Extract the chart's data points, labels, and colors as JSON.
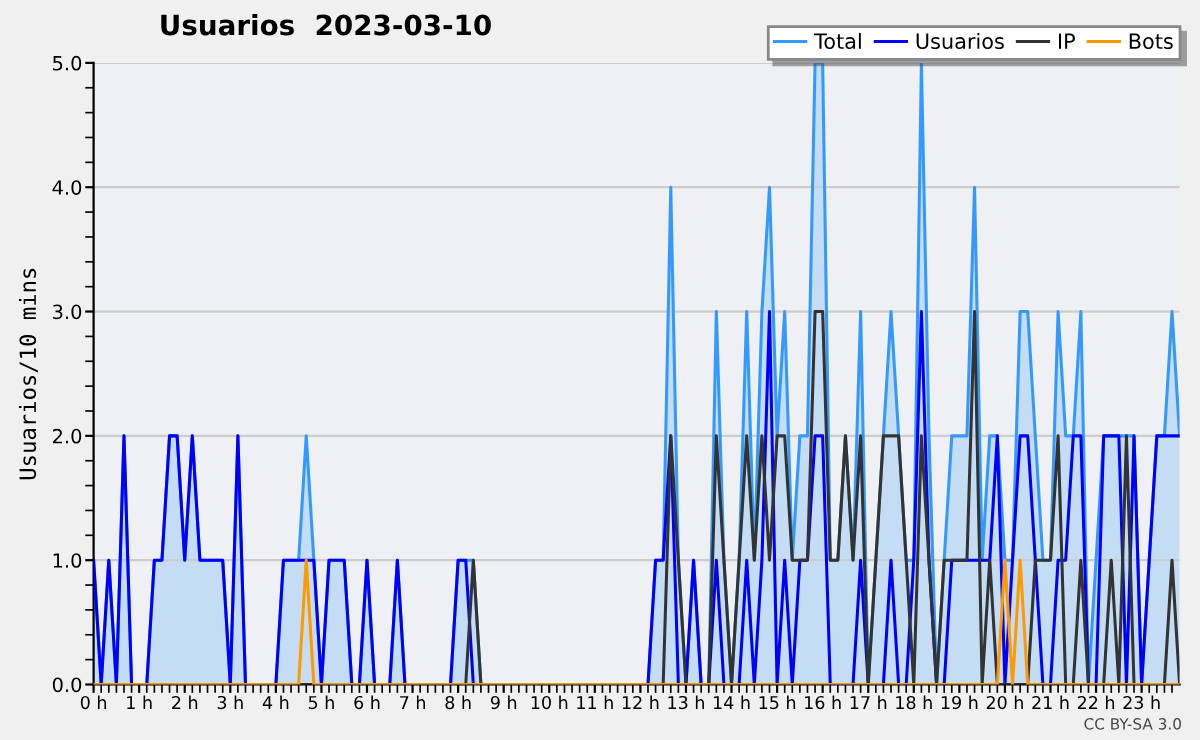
{
  "chart_data": {
    "type": "line",
    "title": "Usuarios  2023-03-10",
    "ylabel": "Usuarios/10 mins",
    "annotations": [
      "CC BY-SA 3.0"
    ],
    "x": [
      0,
      0.1667,
      0.3333,
      0.5,
      0.6667,
      0.8333,
      1,
      1.1667,
      1.3333,
      1.5,
      1.6667,
      1.8333,
      2,
      2.1667,
      2.3333,
      2.5,
      2.6667,
      2.8333,
      3,
      3.1667,
      3.3333,
      3.5,
      3.6667,
      3.8333,
      4,
      4.1667,
      4.3333,
      4.5,
      4.6667,
      4.8333,
      5,
      5.1667,
      5.3333,
      5.5,
      5.6667,
      5.8333,
      6,
      6.1667,
      6.3333,
      6.5,
      6.6667,
      6.8333,
      7,
      7.1667,
      7.3333,
      7.5,
      7.6667,
      7.8333,
      8,
      8.1667,
      8.3333,
      8.5,
      8.6667,
      8.8333,
      9,
      9.1667,
      9.3333,
      9.5,
      9.6667,
      9.8333,
      10,
      10.1667,
      10.3333,
      10.5,
      10.6667,
      10.8333,
      11,
      11.1667,
      11.3333,
      11.5,
      11.6667,
      11.8333,
      12,
      12.1667,
      12.3333,
      12.5,
      12.6667,
      12.8333,
      13,
      13.1667,
      13.3333,
      13.5,
      13.6667,
      13.8333,
      14,
      14.1667,
      14.3333,
      14.5,
      14.6667,
      14.8333,
      15,
      15.1667,
      15.3333,
      15.5,
      15.6667,
      15.8333,
      16,
      16.1667,
      16.3333,
      16.5,
      16.6667,
      16.8333,
      17,
      17.1667,
      17.3333,
      17.5,
      17.6667,
      17.8333,
      18,
      18.1667,
      18.3333,
      18.5,
      18.6667,
      18.8333,
      19,
      19.1667,
      19.3333,
      19.5,
      19.6667,
      19.8333,
      20,
      20.1667,
      20.3333,
      20.5,
      20.6667,
      20.8333,
      21,
      21.1667,
      21.3333,
      21.5,
      21.6667,
      21.8333,
      22,
      22.1667,
      22.3333,
      22.5,
      22.6667,
      22.8333,
      23,
      23.1667,
      23.3333,
      23.5,
      23.6667,
      23.8333
    ],
    "series": [
      {
        "name": "Total",
        "type": "area",
        "color": "#3399ff",
        "values": [
          1,
          0,
          1,
          0,
          2,
          0,
          0,
          0,
          1,
          1,
          2,
          2,
          1,
          2,
          1,
          1,
          1,
          1,
          0,
          2,
          0,
          0,
          0,
          0,
          0,
          1,
          1,
          1,
          2,
          1,
          0,
          1,
          1,
          1,
          0,
          0,
          1,
          0,
          0,
          0,
          1,
          0,
          0,
          0,
          0,
          0,
          0,
          0,
          1,
          1,
          1,
          0,
          0,
          0,
          0,
          0,
          0,
          0,
          0,
          0,
          0,
          0,
          0,
          0,
          0,
          0,
          0,
          0,
          0,
          0,
          0,
          0,
          0,
          0,
          1,
          1,
          4,
          1,
          0,
          1,
          0,
          0,
          3,
          1,
          0,
          1,
          3,
          1,
          3,
          4,
          2,
          3,
          1,
          2,
          2,
          5,
          5,
          1,
          1,
          2,
          1,
          3,
          0,
          1,
          2,
          3,
          2,
          1,
          1,
          5,
          2,
          0,
          1,
          2,
          2,
          2,
          4,
          1,
          2,
          2,
          1,
          1,
          3,
          3,
          2,
          1,
          1,
          3,
          2,
          2,
          3,
          0,
          1,
          2,
          2,
          2,
          2,
          2,
          0,
          1,
          2,
          2,
          3,
          2
        ]
      },
      {
        "name": "Usuarios",
        "color": "#0000ff",
        "values": [
          1,
          0,
          1,
          0,
          2,
          0,
          0,
          0,
          1,
          1,
          2,
          2,
          1,
          2,
          1,
          1,
          1,
          1,
          0,
          2,
          0,
          0,
          0,
          0,
          0,
          1,
          1,
          1,
          1,
          1,
          0,
          1,
          1,
          1,
          0,
          0,
          1,
          0,
          0,
          0,
          1,
          0,
          0,
          0,
          0,
          0,
          0,
          0,
          1,
          1,
          0,
          0,
          0,
          0,
          0,
          0,
          0,
          0,
          0,
          0,
          0,
          0,
          0,
          0,
          0,
          0,
          0,
          0,
          0,
          0,
          0,
          0,
          0,
          0,
          1,
          1,
          2,
          0,
          0,
          1,
          0,
          0,
          1,
          0,
          0,
          0,
          1,
          0,
          1,
          3,
          0,
          1,
          0,
          1,
          1,
          2,
          2,
          0,
          0,
          0,
          0,
          1,
          0,
          0,
          0,
          1,
          0,
          0,
          1,
          3,
          1,
          0,
          0,
          1,
          1,
          1,
          1,
          1,
          1,
          2,
          0,
          1,
          2,
          2,
          1,
          0,
          0,
          1,
          1,
          2,
          2,
          0,
          0,
          2,
          2,
          2,
          0,
          2,
          0,
          1,
          2,
          2,
          2,
          2
        ]
      },
      {
        "name": "IP",
        "color": "#333333",
        "values": [
          0,
          0,
          0,
          0,
          0,
          0,
          0,
          0,
          0,
          0,
          0,
          0,
          0,
          0,
          0,
          0,
          0,
          0,
          0,
          0,
          0,
          0,
          0,
          0,
          0,
          0,
          0,
          0,
          0,
          0,
          0,
          0,
          0,
          0,
          0,
          0,
          0,
          0,
          0,
          0,
          0,
          0,
          0,
          0,
          0,
          0,
          0,
          0,
          0,
          0,
          1,
          0,
          0,
          0,
          0,
          0,
          0,
          0,
          0,
          0,
          0,
          0,
          0,
          0,
          0,
          0,
          0,
          0,
          0,
          0,
          0,
          0,
          0,
          0,
          0,
          0,
          2,
          1,
          0,
          0,
          0,
          0,
          2,
          1,
          0,
          1,
          2,
          1,
          2,
          1,
          2,
          2,
          1,
          1,
          1,
          3,
          3,
          1,
          1,
          2,
          1,
          2,
          0,
          1,
          2,
          2,
          2,
          1,
          0,
          2,
          1,
          0,
          1,
          1,
          1,
          1,
          3,
          0,
          1,
          0,
          0,
          0,
          0,
          0,
          1,
          1,
          1,
          2,
          0,
          0,
          1,
          0,
          0,
          0,
          1,
          0,
          2,
          0,
          0,
          0,
          0,
          0,
          1,
          0
        ]
      },
      {
        "name": "Bots",
        "color": "#ff9900",
        "values": [
          0,
          0,
          0,
          0,
          0,
          0,
          0,
          0,
          0,
          0,
          0,
          0,
          0,
          0,
          0,
          0,
          0,
          0,
          0,
          0,
          0,
          0,
          0,
          0,
          0,
          0,
          0,
          0,
          1,
          0,
          0,
          0,
          0,
          0,
          0,
          0,
          0,
          0,
          0,
          0,
          0,
          0,
          0,
          0,
          0,
          0,
          0,
          0,
          0,
          0,
          0,
          0,
          0,
          0,
          0,
          0,
          0,
          0,
          0,
          0,
          0,
          0,
          0,
          0,
          0,
          0,
          0,
          0,
          0,
          0,
          0,
          0,
          0,
          0,
          0,
          0,
          0,
          0,
          0,
          0,
          0,
          0,
          0,
          0,
          0,
          0,
          0,
          0,
          0,
          0,
          0,
          0,
          0,
          0,
          0,
          0,
          0,
          0,
          0,
          0,
          0,
          0,
          0,
          0,
          0,
          0,
          0,
          0,
          0,
          0,
          0,
          0,
          0,
          0,
          0,
          0,
          0,
          0,
          0,
          0,
          1,
          0,
          1,
          0,
          0,
          0,
          0,
          0,
          0,
          0,
          0,
          0,
          0,
          0,
          0,
          0,
          0,
          0,
          0,
          0,
          0,
          0,
          0,
          0
        ]
      }
    ],
    "xlim": [
      0,
      23.8333
    ],
    "xticks": [
      {
        "value": 0,
        "label": "0 h"
      },
      {
        "value": 1,
        "label": "1 h"
      },
      {
        "value": 2,
        "label": "2 h"
      },
      {
        "value": 3,
        "label": "3 h"
      },
      {
        "value": 4,
        "label": "4 h"
      },
      {
        "value": 5,
        "label": "5 h"
      },
      {
        "value": 6,
        "label": "6 h"
      },
      {
        "value": 7,
        "label": "7 h"
      },
      {
        "value": 8,
        "label": "8 h"
      },
      {
        "value": 9,
        "label": "9 h"
      },
      {
        "value": 10,
        "label": "10 h"
      },
      {
        "value": 11,
        "label": "11 h"
      },
      {
        "value": 12,
        "label": "12 h"
      },
      {
        "value": 13,
        "label": "13 h"
      },
      {
        "value": 14,
        "label": "14 h"
      },
      {
        "value": 15,
        "label": "15 h"
      },
      {
        "value": 16,
        "label": "16 h"
      },
      {
        "value": 17,
        "label": "17 h"
      },
      {
        "value": 18,
        "label": "18 h"
      },
      {
        "value": 19,
        "label": "19 h"
      },
      {
        "value": 20,
        "label": "20 h"
      },
      {
        "value": 21,
        "label": "21 h"
      },
      {
        "value": 22,
        "label": "22 h"
      },
      {
        "value": 23,
        "label": "23 h"
      }
    ],
    "ylim": [
      0,
      5
    ],
    "yticks": [
      {
        "value": 0,
        "label": "0.0"
      },
      {
        "value": 1,
        "label": "1.0"
      },
      {
        "value": 2,
        "label": "2.0"
      },
      {
        "value": 3,
        "label": "3.0"
      },
      {
        "value": 4,
        "label": "4.0"
      },
      {
        "value": 5,
        "label": "5.0"
      }
    ],
    "grid": "y",
    "legend": "top right"
  }
}
